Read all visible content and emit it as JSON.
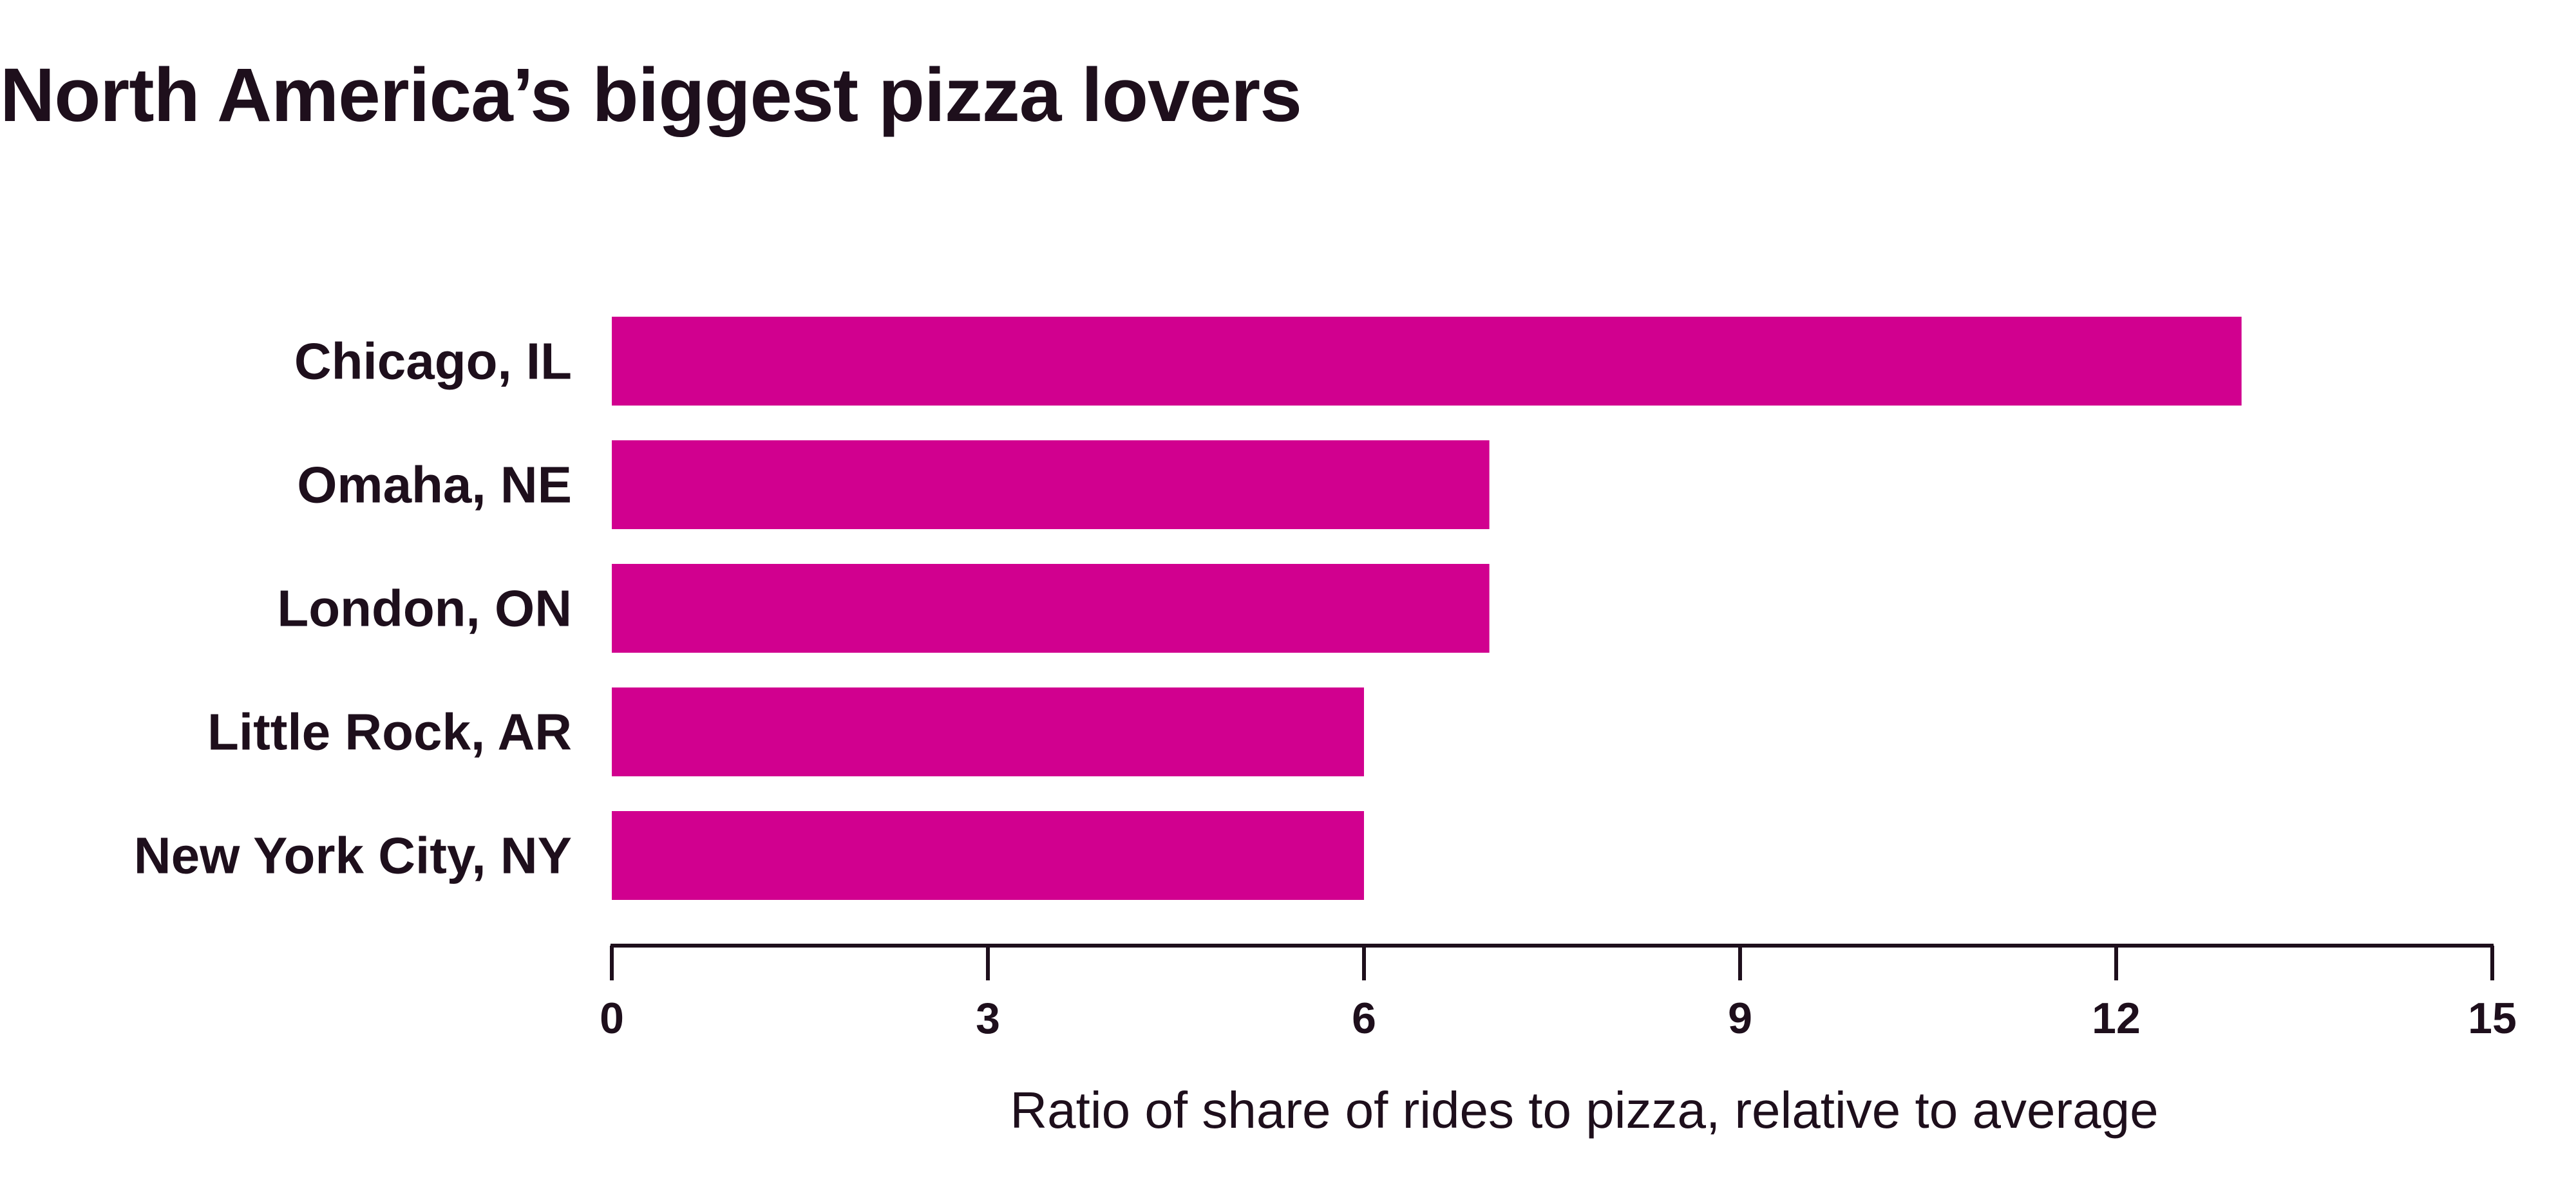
{
  "chart_data": {
    "type": "bar",
    "orientation": "horizontal",
    "title": "North America’s biggest pizza lovers",
    "categories": [
      "Chicago, IL",
      "Omaha, NE",
      "London, ON",
      "Little Rock, AR",
      "New York City, NY"
    ],
    "values": [
      13,
      7,
      7,
      6,
      6
    ],
    "xlabel": "Ratio of share of rides to pizza, relative to average",
    "ylabel": "",
    "xlim": [
      0,
      15
    ],
    "xticks": [
      0,
      3,
      6,
      9,
      12,
      15
    ],
    "grid": false,
    "legend": "none",
    "colors": {
      "bar": "#d1008f",
      "text": "#1e0f1c",
      "axis": "#1e0f1c"
    }
  }
}
